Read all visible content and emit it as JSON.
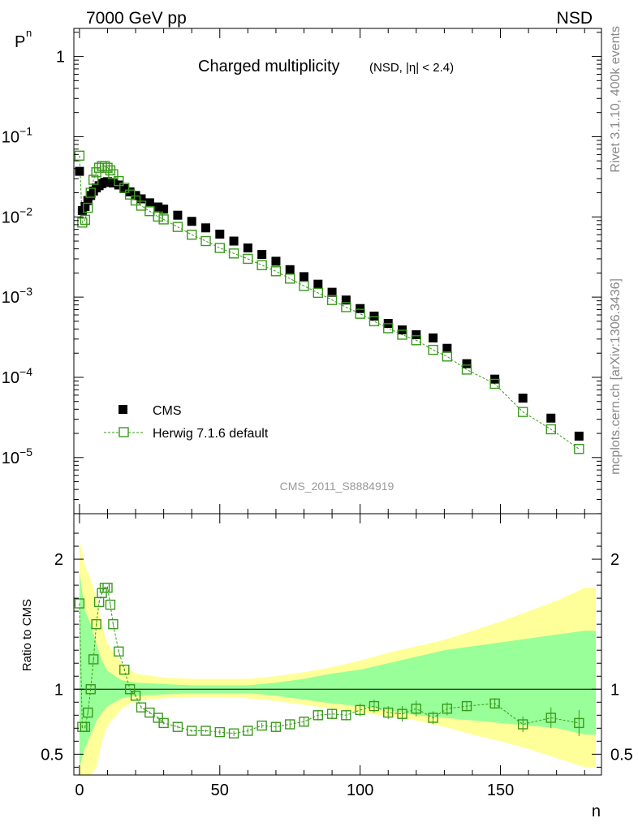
{
  "header": {
    "left": "7000 GeV pp",
    "right": "NSD"
  },
  "side_labels": {
    "rivet": "Rivet 3.1.10,  400k events",
    "mcplots": "mcplots.cern.ch [arXiv:1306.3436]"
  },
  "chart_data": [
    {
      "type": "scatter",
      "panel": "main",
      "title": "Charged multiplicity",
      "subtitle": "(NSD, |η| < 2.4)",
      "ylabel": "P",
      "ylabel_sub": "n",
      "yscale": "log",
      "xlim": [
        -2,
        186
      ],
      "ylim_exp": [
        -5.7,
        0.35
      ],
      "ytick_labels": [
        {
          "exp": 0,
          "label": "1",
          "sup": ""
        },
        {
          "exp": -1,
          "label": "10",
          "sup": "−1"
        },
        {
          "exp": -2,
          "label": "10",
          "sup": "−2"
        },
        {
          "exp": -3,
          "label": "10",
          "sup": "−3"
        },
        {
          "exp": -4,
          "label": "10",
          "sup": "−4"
        },
        {
          "exp": -5,
          "label": "10",
          "sup": "−5"
        }
      ],
      "legend_placement": "bottom-left",
      "series": [
        {
          "name": "CMS",
          "marker": "filled-square",
          "color": "#000000",
          "x": [
            0,
            1,
            2,
            3,
            4,
            5,
            6,
            7,
            8,
            9,
            10,
            11,
            12,
            14,
            16,
            18,
            20,
            22,
            25,
            28,
            30,
            35,
            40,
            45,
            50,
            55,
            60,
            65,
            70,
            75,
            80,
            85,
            90,
            95,
            100,
            105,
            110,
            115,
            120,
            126,
            131,
            138,
            148,
            158,
            168,
            178
          ],
          "y": [
            0.037,
            0.012,
            0.0135,
            0.016,
            0.0185,
            0.021,
            0.023,
            0.0245,
            0.026,
            0.027,
            0.0275,
            0.027,
            0.0265,
            0.025,
            0.0225,
            0.0205,
            0.0185,
            0.0168,
            0.015,
            0.0133,
            0.0125,
            0.0105,
            0.0088,
            0.0073,
            0.0061,
            0.005,
            0.0041,
            0.0034,
            0.0028,
            0.0022,
            0.0018,
            0.00145,
            0.00115,
            0.00092,
            0.00072,
            0.00058,
            0.00047,
            0.00039,
            0.00034,
            0.00031,
            0.00023,
            0.000148,
            9.5e-05,
            5.5e-05,
            3.1e-05,
            1.85e-05
          ]
        },
        {
          "name": "Herwig 7.1.6 default",
          "marker": "open-square",
          "color": "#3a9a1c",
          "line": "dashed",
          "x": [
            0,
            1,
            2,
            3,
            4,
            5,
            6,
            7,
            8,
            9,
            10,
            11,
            12,
            14,
            16,
            18,
            20,
            22,
            25,
            28,
            30,
            35,
            40,
            45,
            50,
            55,
            60,
            65,
            70,
            75,
            80,
            85,
            90,
            95,
            100,
            105,
            110,
            115,
            120,
            126,
            131,
            138,
            148,
            158,
            168,
            178
          ],
          "y": [
            0.058,
            0.0085,
            0.0092,
            0.013,
            0.02,
            0.029,
            0.036,
            0.041,
            0.043,
            0.043,
            0.041,
            0.038,
            0.034,
            0.028,
            0.023,
            0.019,
            0.016,
            0.0138,
            0.0118,
            0.0101,
            0.0093,
            0.0075,
            0.006,
            0.005,
            0.0041,
            0.0035,
            0.003,
            0.0025,
            0.0021,
            0.0017,
            0.00138,
            0.00113,
            0.00092,
            0.00075,
            0.00062,
            0.0005,
            0.00041,
            0.00034,
            0.00029,
            0.00022,
            0.000182,
            0.000125,
            8.3e-05,
            3.7e-05,
            2.25e-05,
            1.28e-05
          ]
        }
      ]
    },
    {
      "type": "scatter",
      "panel": "ratio",
      "ylabel": "Ratio to CMS",
      "xlabel": "n",
      "xlim": [
        -2,
        186
      ],
      "ylim": [
        0.34,
        2.35
      ],
      "xtick_labels": [
        "0",
        "50",
        "100",
        "150"
      ],
      "xtick_values": [
        0,
        50,
        100,
        150
      ],
      "ytick_labels": [
        "0.5",
        "1",
        "2"
      ],
      "ytick_values": [
        0.5,
        1,
        2
      ],
      "ratio_series": {
        "name": "Herwig 7.1.6 default / CMS",
        "x": [
          0,
          1,
          2,
          3,
          4,
          5,
          6,
          7,
          8,
          9,
          10,
          11,
          12,
          14,
          16,
          18,
          20,
          22,
          25,
          28,
          30,
          35,
          40,
          45,
          50,
          55,
          60,
          65,
          70,
          75,
          80,
          85,
          90,
          95,
          100,
          105,
          110,
          115,
          120,
          126,
          131,
          138,
          148,
          158,
          168,
          178
        ],
        "y": [
          1.66,
          0.71,
          0.71,
          0.82,
          1.0,
          1.23,
          1.5,
          1.67,
          1.74,
          1.78,
          1.78,
          1.65,
          1.5,
          1.29,
          1.15,
          1.0,
          0.95,
          0.86,
          0.82,
          0.78,
          0.74,
          0.71,
          0.68,
          0.68,
          0.67,
          0.66,
          0.68,
          0.72,
          0.71,
          0.73,
          0.75,
          0.8,
          0.81,
          0.8,
          0.84,
          0.87,
          0.82,
          0.81,
          0.85,
          0.78,
          0.85,
          0.87,
          0.89,
          0.73,
          0.78,
          0.74
        ],
        "err": [
          0,
          0.01,
          0.01,
          0.01,
          0.01,
          0.01,
          0.01,
          0.01,
          0.01,
          0.01,
          0.01,
          0.01,
          0.01,
          0.01,
          0.01,
          0.01,
          0.01,
          0.01,
          0.01,
          0.01,
          0.01,
          0.01,
          0.01,
          0.01,
          0.02,
          0.02,
          0.02,
          0.02,
          0.03,
          0.03,
          0.03,
          0.04,
          0.04,
          0.04,
          0.05,
          0.05,
          0.05,
          0.06,
          0.06,
          0.05,
          0.05,
          0.04,
          0.04,
          0.06,
          0.08,
          0.1
        ]
      },
      "bands": {
        "x": [
          0,
          2,
          4,
          6,
          8,
          10,
          15,
          20,
          30,
          40,
          50,
          60,
          70,
          80,
          90,
          100,
          110,
          120,
          130,
          140,
          150,
          160,
          170,
          180,
          184
        ],
        "yellow_hi": [
          2.15,
          1.95,
          1.85,
          1.7,
          1.5,
          1.35,
          1.2,
          1.12,
          1.09,
          1.08,
          1.08,
          1.08,
          1.1,
          1.13,
          1.17,
          1.22,
          1.28,
          1.33,
          1.38,
          1.45,
          1.52,
          1.6,
          1.68,
          1.78,
          1.78
        ],
        "yellow_lo": [
          0.2,
          0.05,
          0.15,
          0.4,
          0.6,
          0.72,
          0.85,
          0.91,
          0.93,
          0.94,
          0.94,
          0.93,
          0.91,
          0.88,
          0.85,
          0.82,
          0.79,
          0.76,
          0.71,
          0.65,
          0.6,
          0.54,
          0.47,
          0.4,
          0.4
        ],
        "green_hi": [
          1.9,
          1.6,
          1.5,
          1.35,
          1.22,
          1.14,
          1.07,
          1.05,
          1.04,
          1.03,
          1.03,
          1.03,
          1.05,
          1.08,
          1.12,
          1.15,
          1.2,
          1.25,
          1.3,
          1.33,
          1.36,
          1.39,
          1.42,
          1.45,
          1.45
        ],
        "green_lo": [
          0.4,
          0.55,
          0.65,
          0.75,
          0.82,
          0.87,
          0.93,
          0.95,
          0.96,
          0.97,
          0.97,
          0.97,
          0.95,
          0.92,
          0.89,
          0.87,
          0.84,
          0.8,
          0.78,
          0.76,
          0.74,
          0.72,
          0.7,
          0.65,
          0.65
        ]
      }
    }
  ],
  "watermark": "CMS_2011_S8884919",
  "colors": {
    "yellow_band": "#ffff99",
    "green_band": "#99ff99",
    "herwig": "#3a9a1c",
    "cms": "#000000"
  }
}
